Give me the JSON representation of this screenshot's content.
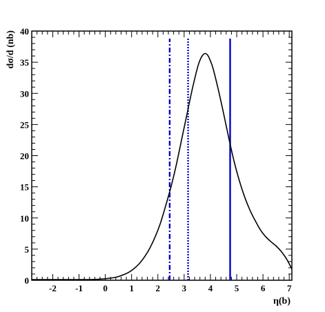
{
  "chart_data": {
    "type": "line",
    "title": "",
    "xlabel": "η(b)",
    "ylabel": "dσ/d (nb)",
    "xlim": [
      -2.8,
      7.1
    ],
    "ylim": [
      0,
      40
    ],
    "x_ticks": [
      -2,
      -1,
      0,
      1,
      2,
      3,
      4,
      5,
      6,
      7
    ],
    "y_ticks": [
      0,
      5,
      10,
      15,
      20,
      25,
      30,
      35,
      40
    ],
    "grid": false,
    "series": [
      {
        "color": "#000000",
        "style": "solid",
        "x": [
          -2.8,
          -2.0,
          -1.5,
          -1.0,
          -0.5,
          0.0,
          0.3,
          0.5,
          0.7,
          0.9,
          1.1,
          1.3,
          1.5,
          1.7,
          1.9,
          2.1,
          2.3,
          2.5,
          2.7,
          2.9,
          3.1,
          3.3,
          3.5,
          3.6,
          3.7,
          3.8,
          3.9,
          4.0,
          4.1,
          4.3,
          4.5,
          4.7,
          4.9,
          5.1,
          5.3,
          5.5,
          5.7,
          5.9,
          6.1,
          6.3,
          6.5,
          6.7,
          6.9,
          7.1
        ],
        "y": [
          0.1,
          0.1,
          0.1,
          0.1,
          0.12,
          0.25,
          0.4,
          0.6,
          0.9,
          1.3,
          1.9,
          2.7,
          3.8,
          5.2,
          7.0,
          9.2,
          12.0,
          15.0,
          18.5,
          22.5,
          26.5,
          30.5,
          34.0,
          35.3,
          36.1,
          36.4,
          36.1,
          35.2,
          34.0,
          30.6,
          26.8,
          22.8,
          19.1,
          16.0,
          13.4,
          11.3,
          9.6,
          8.1,
          7.0,
          6.2,
          5.5,
          4.6,
          3.4,
          1.8
        ]
      }
    ],
    "vlines": [
      {
        "x": 2.45,
        "color": "#0000cc",
        "style": "dashdot",
        "ymax": 38.8
      },
      {
        "x": 3.15,
        "color": "#0000cc",
        "style": "dotted",
        "ymax": 38.8
      },
      {
        "x": 4.75,
        "color": "#0000cc",
        "style": "solid",
        "ymax": 38.8
      }
    ]
  }
}
